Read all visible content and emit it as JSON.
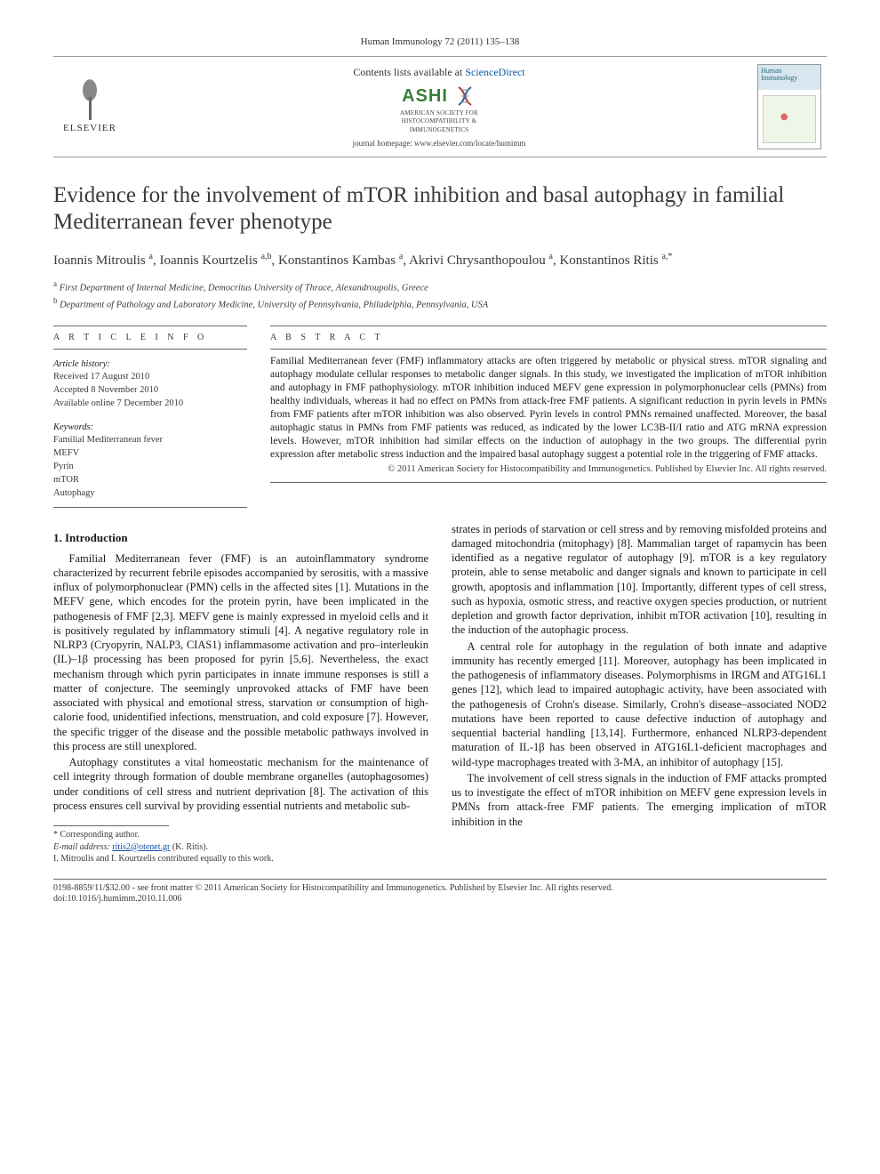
{
  "header": {
    "citation": "Human Immunology 72 (2011) 135–138",
    "contents_line_prefix": "Contents lists available at ",
    "contents_link": "ScienceDirect",
    "publisher_name": "ELSEVIER",
    "ashi_name": "ASHI",
    "ashi_sub1": "AMERICAN SOCIETY FOR",
    "ashi_sub2": "HISTOCOMPATIBILITY &",
    "ashi_sub3": "IMMUNOGENETICS",
    "journal_home": "journal homepage: www.elsevier.com/locate/humimm",
    "cover_title": "Human Immunology"
  },
  "title": "Evidence for the involvement of mTOR inhibition and basal autophagy in familial Mediterranean fever phenotype",
  "authors_html": "Ioannis Mitroulis <span class='aff'>a</span>, Ioannis Kourtzelis <span class='aff'>a,b</span>, Konstantinos Kambas <span class='aff'>a</span>, Akrivi Chrysanthopoulou <span class='aff'>a</span>, Konstantinos Ritis <span class='aff'>a,*</span>",
  "affiliations": {
    "a": "First Department of Internal Medicine, Democritus University of Thrace, Alexandroupolis, Greece",
    "b": "Department of Pathology and Laboratory Medicine, University of Pennsylvania, Philadelphia, Pennsylvania, USA"
  },
  "article_info": {
    "heading": "A R T I C L E   I N F O",
    "history_hd": "Article history:",
    "received": "Received 17 August 2010",
    "accepted": "Accepted 8 November 2010",
    "online": "Available online 7 December 2010",
    "keywords_hd": "Keywords:",
    "keywords": [
      "Familial Mediterranean fever",
      "MEFV",
      "Pyrin",
      "mTOR",
      "Autophagy"
    ]
  },
  "abstract": {
    "heading": "A B S T R A C T",
    "text": "Familial Mediterranean fever (FMF) inflammatory attacks are often triggered by metabolic or physical stress. mTOR signaling and autophagy modulate cellular responses to metabolic danger signals. In this study, we investigated the implication of mTOR inhibition and autophagy in FMF pathophysiology. mTOR inhibition induced MEFV gene expression in polymorphonuclear cells (PMNs) from healthy individuals, whereas it had no effect on PMNs from attack-free FMF patients. A significant reduction in pyrin levels in PMNs from FMF patients after mTOR inhibition was also observed. Pyrin levels in control PMNs remained unaffected. Moreover, the basal autophagic status in PMNs from FMF patients was reduced, as indicated by the lower LC3B-II/I ratio and ATG mRNA expression levels. However, mTOR inhibition had similar effects on the induction of autophagy in the two groups. The differential pyrin expression after metabolic stress induction and the impaired basal autophagy suggest a potential role in the triggering of FMF attacks.",
    "copyright": "© 2011 American Society for Histocompatibility and Immunogenetics. Published by Elsevier Inc. All rights reserved."
  },
  "section1_hd": "1. Introduction",
  "p1": "Familial Mediterranean fever (FMF) is an autoinflammatory syndrome characterized by recurrent febrile episodes accompanied by serositis, with a massive influx of polymorphonuclear (PMN) cells in the affected sites [1]. Mutations in the MEFV gene, which encodes for the protein pyrin, have been implicated in the pathogenesis of FMF [2,3]. MEFV gene is mainly expressed in myeloid cells and it is positively regulated by inflammatory stimuli [4]. A negative regulatory role in NLRP3 (Cryopyrin, NALP3, CIAS1) inflammasome activation and pro–interleukin (IL)–1β processing has been proposed for pyrin [5,6]. Nevertheless, the exact mechanism through which pyrin participates in innate immune responses is still a matter of conjecture. The seemingly unprovoked attacks of FMF have been associated with physical and emotional stress, starvation or consumption of high-calorie food, unidentified infections, menstruation, and cold exposure [7]. However, the specific trigger of the disease and the possible metabolic pathways involved in this process are still unexplored.",
  "p2": "Autophagy constitutes a vital homeostatic mechanism for the maintenance of cell integrity through formation of double membrane organelles (autophagosomes) under conditions of cell stress and nutrient deprivation [8]. The activation of this process ensures cell survival by providing essential nutrients and metabolic sub-",
  "p3": "strates in periods of starvation or cell stress and by removing misfolded proteins and damaged mitochondria (mitophagy) [8]. Mammalian target of rapamycin has been identified as a negative regulator of autophagy [9]. mTOR is a key regulatory protein, able to sense metabolic and danger signals and known to participate in cell growth, apoptosis and inflammation [10]. Importantly, different types of cell stress, such as hypoxia, osmotic stress, and reactive oxygen species production, or nutrient depletion and growth factor deprivation, inhibit mTOR activation [10], resulting in the induction of the autophagic process.",
  "p4": "A central role for autophagy in the regulation of both innate and adaptive immunity has recently emerged [11]. Moreover, autophagy has been implicated in the pathogenesis of inflammatory diseases. Polymorphisms in IRGM and ATG16L1 genes [12], which lead to impaired autophagic activity, have been associated with the pathogenesis of Crohn's disease. Similarly, Crohn's disease–associated NOD2 mutations have been reported to cause defective induction of autophagy and sequential bacterial handling [13,14]. Furthermore, enhanced NLRP3-dependent maturation of IL-1β has been observed in ATG16L1-deficient macrophages and wild-type macrophages treated with 3-MA, an inhibitor of autophagy [15].",
  "p5": "The involvement of cell stress signals in the induction of FMF attacks prompted us to investigate the effect of mTOR inhibition on MEFV gene expression levels in PMNs from attack-free FMF patients. The emerging implication of mTOR inhibition in the",
  "footnote": {
    "corr": "* Corresponding author.",
    "email_label": "E-mail address:",
    "email": "ritis2@otenet.gr",
    "email_name": "(K. Ritis).",
    "contrib": "I. Mitroulis and I. Kourtzelis contributed equally to this work."
  },
  "bottom": {
    "line1": "0198-8859/11/$32.00 - see front matter © 2011 American Society for Histocompatibility and Immunogenetics. Published by Elsevier Inc. All rights reserved.",
    "line2": "doi:10.1016/j.humimm.2010.11.006"
  },
  "colors": {
    "link": "#1850a8",
    "text": "#1a1a1a",
    "rule": "#666666",
    "ashi": "#3a7f3a"
  }
}
